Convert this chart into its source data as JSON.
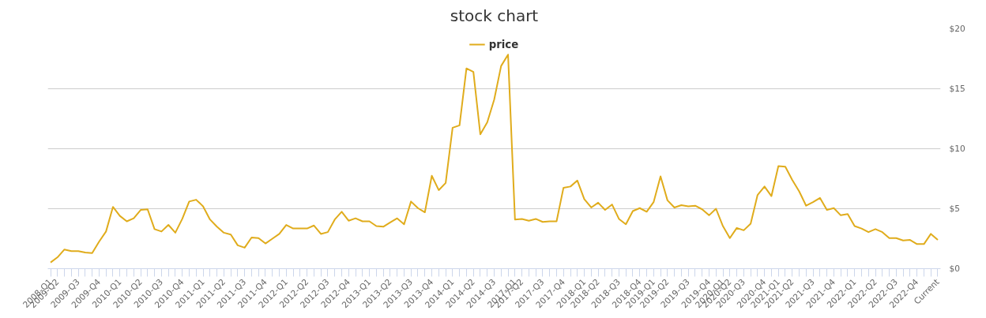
{
  "chart_data": {
    "type": "line",
    "title": "stock chart",
    "categories": [
      "2008-Q1",
      "2009-Q2",
      null,
      null,
      "2009-Q3",
      null,
      null,
      "2009-Q4",
      null,
      null,
      "2010-Q1",
      null,
      null,
      "2010-Q2",
      null,
      null,
      "2010-Q3",
      null,
      null,
      "2010-Q4",
      null,
      null,
      "2011-Q1",
      null,
      null,
      "2011-Q2",
      null,
      null,
      "2011-Q3",
      null,
      null,
      "2011-Q4",
      null,
      null,
      "2012-Q1",
      null,
      null,
      "2012-Q2",
      null,
      null,
      "2012-Q3",
      null,
      null,
      "2012-Q4",
      null,
      null,
      "2013-Q1",
      null,
      null,
      "2013-Q2",
      null,
      null,
      "2013-Q3",
      null,
      null,
      "2013-Q4",
      null,
      null,
      "2014-Q1",
      null,
      null,
      "2014-Q2",
      null,
      null,
      "2014-Q3",
      null,
      null,
      "2017-Q1",
      "2017-Q2",
      null,
      null,
      "2017-Q3",
      null,
      null,
      "2017-Q4",
      null,
      null,
      "2018-Q1",
      null,
      "2018-Q2",
      null,
      null,
      "2018-Q3",
      null,
      null,
      "2018-Q4",
      null,
      "2019-Q1",
      null,
      "2019-Q2",
      null,
      null,
      "2019-Q3",
      null,
      null,
      "2019-Q4",
      null,
      "2020-Q1",
      "2020-Q2",
      null,
      "2020-Q3",
      null,
      null,
      "2020-Q4",
      null,
      "2021-Q1",
      null,
      "2021-Q2",
      null,
      null,
      "2021-Q3",
      null,
      null,
      "2021-Q4",
      null,
      null,
      "2022-Q1",
      null,
      null,
      "2022-Q2",
      null,
      null,
      "2022-Q3",
      null,
      null,
      "2022-Q4",
      null,
      null,
      "Current"
    ],
    "series": [
      {
        "name": "price",
        "color": "#e0ac1c",
        "values": [
          0.52,
          0.95,
          1.6,
          1.47,
          1.47,
          1.35,
          1.3,
          2.25,
          3.1,
          5.15,
          4.4,
          3.95,
          4.2,
          4.9,
          4.95,
          3.3,
          3.1,
          3.65,
          3.0,
          4.15,
          5.6,
          5.75,
          5.2,
          4.1,
          3.5,
          3.0,
          2.85,
          1.95,
          1.75,
          2.6,
          2.55,
          2.1,
          2.5,
          2.9,
          3.65,
          3.35,
          3.35,
          3.35,
          3.6,
          2.9,
          3.05,
          4.1,
          4.75,
          4.0,
          4.2,
          3.95,
          3.95,
          3.55,
          3.5,
          3.85,
          4.2,
          3.7,
          5.6,
          5.05,
          4.7,
          7.75,
          6.55,
          7.15,
          11.75,
          11.95,
          16.7,
          16.4,
          11.2,
          12.2,
          14.1,
          16.9,
          17.85,
          4.1,
          4.15,
          4.0,
          4.15,
          3.9,
          3.95,
          3.95,
          6.75,
          6.85,
          7.35,
          5.8,
          5.1,
          5.5,
          4.9,
          5.35,
          4.15,
          3.7,
          4.8,
          5.05,
          4.75,
          5.55,
          7.7,
          5.7,
          5.1,
          5.3,
          5.2,
          5.25,
          4.95,
          4.45,
          5.0,
          3.55,
          2.55,
          3.4,
          3.2,
          3.75,
          6.15,
          6.85,
          6.05,
          8.55,
          8.5,
          7.4,
          6.45,
          5.25,
          5.55,
          5.9,
          4.9,
          5.05,
          4.45,
          4.55,
          3.55,
          3.35,
          3.05,
          3.3,
          3.05,
          2.55,
          2.55,
          2.35,
          2.4,
          2.05,
          2.05,
          2.9,
          2.4
        ]
      }
    ],
    "ylim": [
      0,
      20
    ],
    "yticks": [
      {
        "value": 0,
        "label": "$0"
      },
      {
        "value": 5,
        "label": "$5"
      },
      {
        "value": 10,
        "label": "$10"
      },
      {
        "value": 15,
        "label": "$15"
      },
      {
        "value": 20,
        "label": "$20"
      }
    ],
    "grid": "y",
    "legend": "top",
    "marker": "none",
    "line_style": "solid"
  }
}
